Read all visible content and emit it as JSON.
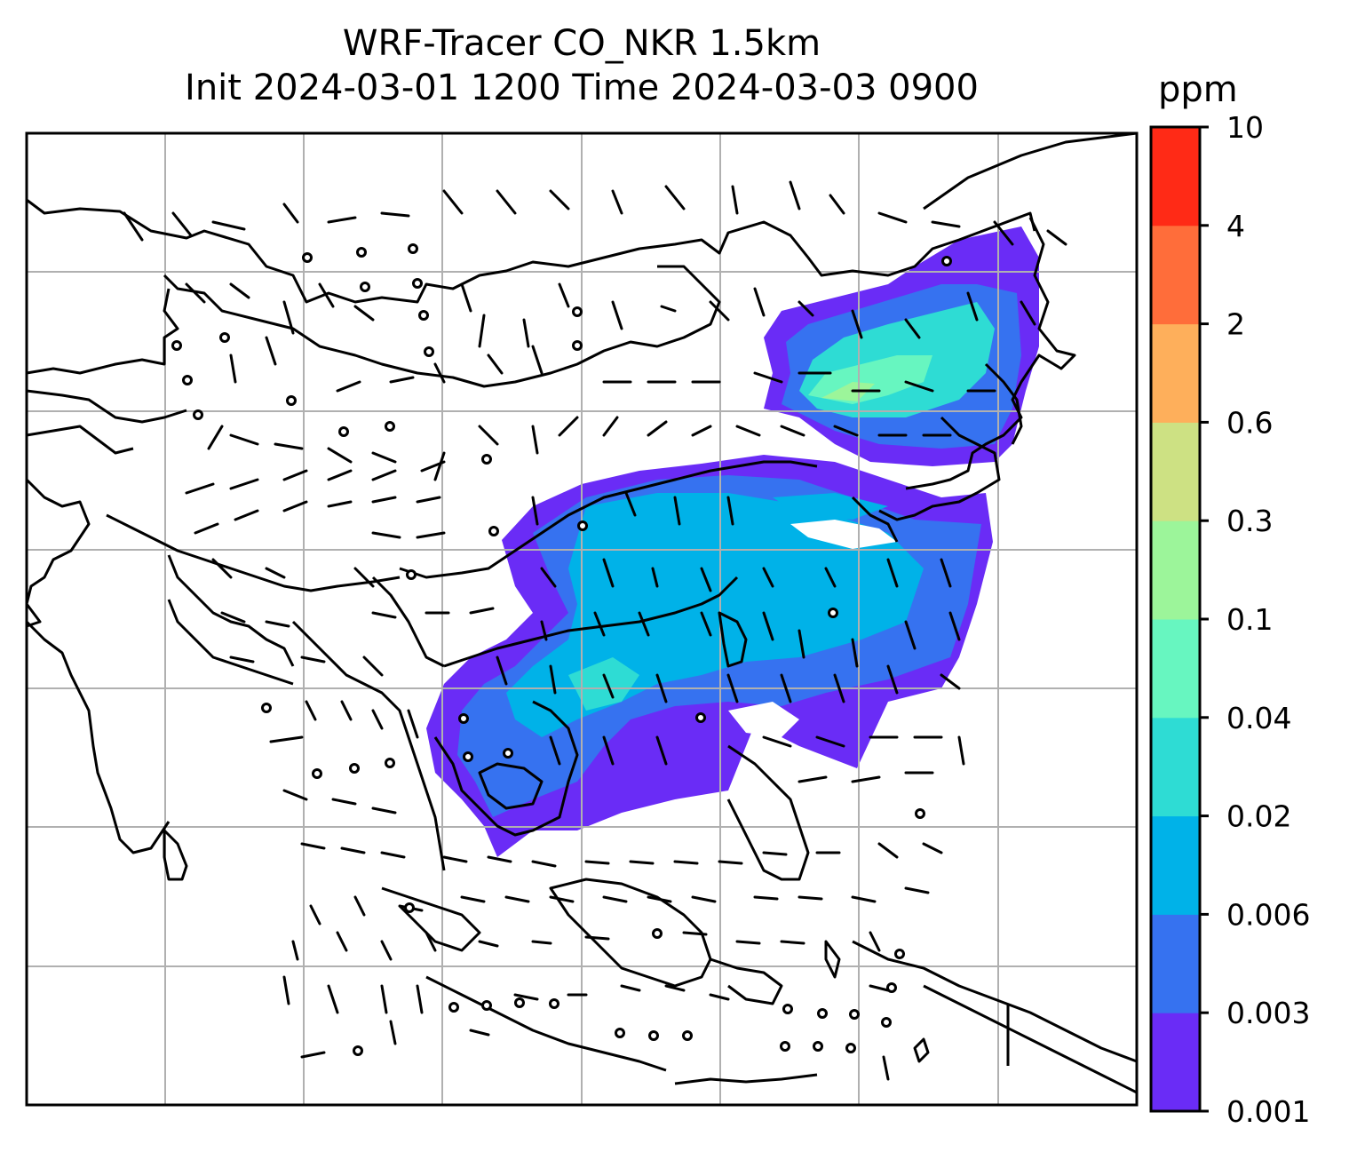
{
  "title": {
    "line1": "WRF-Tracer CO_NKR 1.5km",
    "line2": "Init 2024-03-01 1200 Time 2024-03-03 0900"
  },
  "colorbar": {
    "unit": "ppm",
    "ticks": [
      "0.001",
      "0.003",
      "0.006",
      "0.02",
      "0.04",
      "0.1",
      "0.3",
      "0.6",
      "2",
      "4",
      "10"
    ],
    "colors": [
      "#6a2cf6",
      "#3672f0",
      "#00b2e8",
      "#2edcd4",
      "#67f6c0",
      "#9cf59a",
      "#cde183",
      "#feaf5b",
      "#ff6d3a",
      "#ff2a16"
    ]
  },
  "map": {
    "gridlines": "on",
    "gridline_color": "#b0b0b0",
    "features": [
      "coastlines",
      "country-borders",
      "wind-barbs",
      "co-tracer-plume"
    ]
  }
}
